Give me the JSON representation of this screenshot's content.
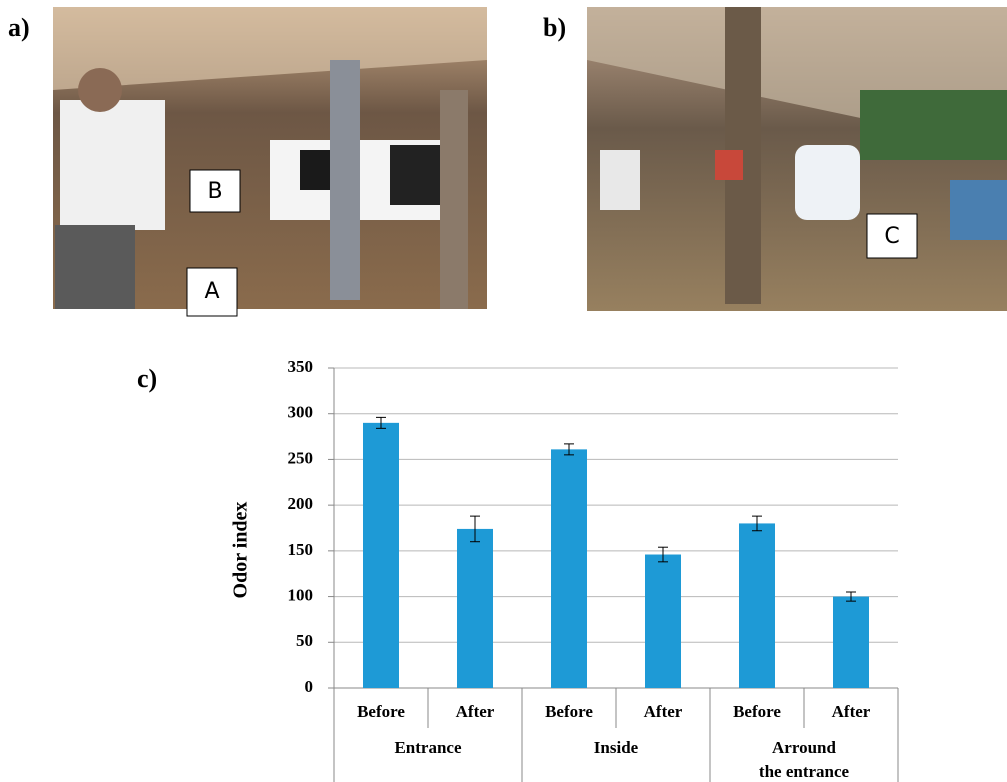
{
  "photos": [
    {
      "label": "a)",
      "markers": [
        "A",
        "B"
      ]
    },
    {
      "label": "b)",
      "markers": [
        "C"
      ]
    }
  ],
  "chart_data": {
    "type": "bar",
    "panel_label": "c)",
    "y_label": "Odor index",
    "categories": [
      "Before",
      "After",
      "Before",
      "After",
      "Before",
      "After"
    ],
    "groups": [
      {
        "lines": [
          "Entrance"
        ]
      },
      {
        "lines": [
          "Inside"
        ]
      },
      {
        "lines": [
          "Arround",
          "the entrance"
        ]
      }
    ],
    "values": [
      290,
      174,
      261,
      146,
      180,
      100
    ],
    "errors": [
      6,
      14,
      6,
      8,
      8,
      5
    ],
    "color": "#1e9ad6",
    "ylim": [
      0,
      350
    ],
    "yticks": [
      0,
      50,
      100,
      150,
      200,
      250,
      300,
      350
    ],
    "grid": true
  }
}
